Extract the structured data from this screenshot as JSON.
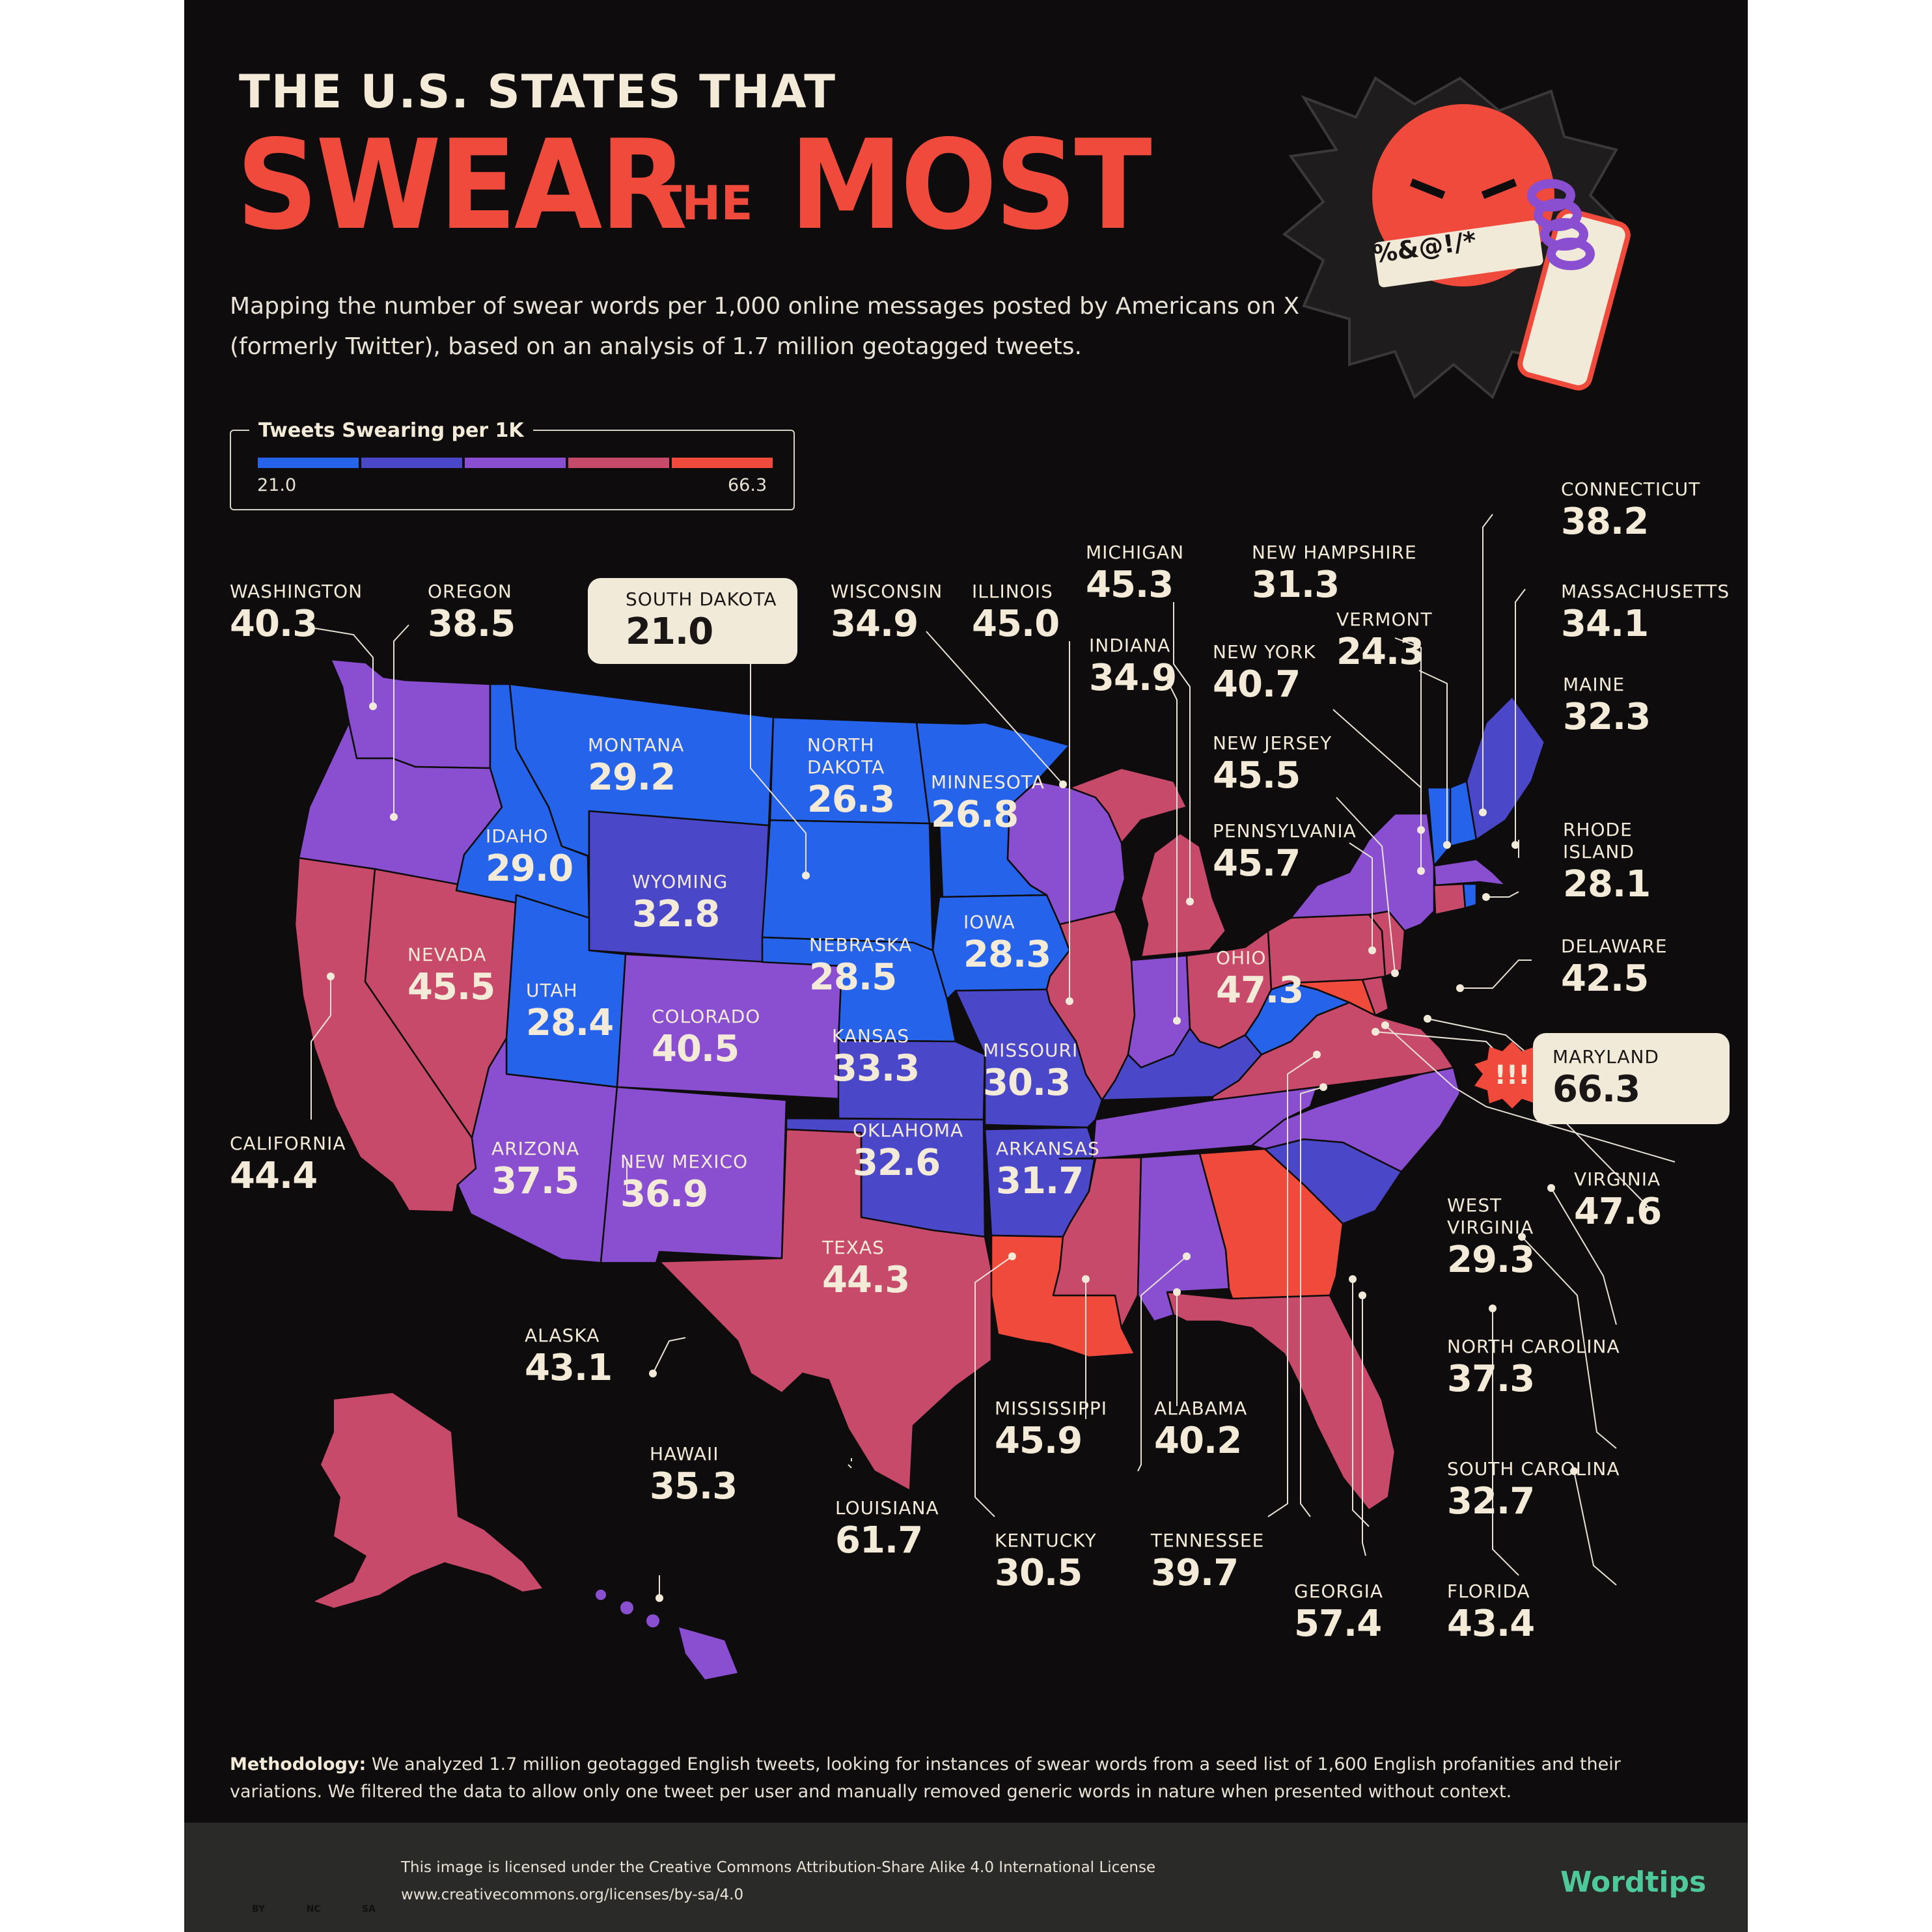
{
  "header": {
    "title_top": "THE U.S. STATES THAT",
    "title_swear": "SWEAR",
    "title_the": "THE",
    "title_most": "MOST",
    "subtitle": "Mapping the number of swear words per 1,000 online messages posted by Americans on X (formerly Twitter), based on an analysis of 1.7 million geotagged tweets."
  },
  "illustration": {
    "symbols": "%&@!/*"
  },
  "legend": {
    "title": "Tweets Swearing per 1K",
    "min": "21.0",
    "max": "66.3",
    "colors": [
      "#2563eb",
      "#4a47c9",
      "#8a4fd0",
      "#c84a6a",
      "#ef4a3c"
    ]
  },
  "states": {
    "washington": {
      "name": "WASHINGTON",
      "value": "40.3"
    },
    "oregon": {
      "name": "OREGON",
      "value": "38.5"
    },
    "south_dakota": {
      "name": "SOUTH DAKOTA",
      "value": "21.0"
    },
    "wisconsin": {
      "name": "WISCONSIN",
      "value": "34.9"
    },
    "illinois": {
      "name": "ILLINOIS",
      "value": "45.0"
    },
    "michigan": {
      "name": "MICHIGAN",
      "value": "45.3"
    },
    "indiana": {
      "name": "INDIANA",
      "value": "34.9"
    },
    "new_hampshire": {
      "name": "NEW HAMPSHIRE",
      "value": "31.3"
    },
    "vermont": {
      "name": "VERMONT",
      "value": "24.3"
    },
    "new_york": {
      "name": "NEW YORK",
      "value": "40.7"
    },
    "new_jersey": {
      "name": "NEW JERSEY",
      "value": "45.5"
    },
    "pennsylvania": {
      "name": "PENNSYLVANIA",
      "value": "45.7"
    },
    "connecticut": {
      "name": "CONNECTICUT",
      "value": "38.2"
    },
    "massachusetts": {
      "name": "MASSACHUSETTS",
      "value": "34.1"
    },
    "maine": {
      "name": "MAINE",
      "value": "32.3"
    },
    "rhode_island": {
      "name1": "RHODE",
      "name2": "ISLAND",
      "value": "28.1"
    },
    "delaware": {
      "name": "DELAWARE",
      "value": "42.5"
    },
    "maryland": {
      "name": "MARYLAND",
      "value": "66.3"
    },
    "virginia": {
      "name": "VIRGINIA",
      "value": "47.6"
    },
    "west_virginia": {
      "name1": "WEST",
      "name2": "VIRGINIA",
      "value": "29.3"
    },
    "north_carolina": {
      "name": "NORTH CAROLINA",
      "value": "37.3"
    },
    "south_carolina": {
      "name": "SOUTH CAROLINA",
      "value": "32.7"
    },
    "florida": {
      "name": "FLORIDA",
      "value": "43.4"
    },
    "georgia": {
      "name": "GEORGIA",
      "value": "57.4"
    },
    "tennessee": {
      "name": "TENNESSEE",
      "value": "39.7"
    },
    "kentucky": {
      "name": "KENTUCKY",
      "value": "30.5"
    },
    "louisiana": {
      "name": "LOUISIANA",
      "value": "61.7"
    },
    "mississippi": {
      "name": "MISSISSIPPI",
      "value": "45.9"
    },
    "alabama": {
      "name": "ALABAMA",
      "value": "40.2"
    },
    "california": {
      "name": "CALIFORNIA",
      "value": "44.4"
    },
    "alaska": {
      "name": "ALASKA",
      "value": "43.1"
    },
    "hawaii": {
      "name": "HAWAII",
      "value": "35.3"
    },
    "montana": {
      "name": "MONTANA",
      "value": "29.2"
    },
    "north_dakota": {
      "name1": "NORTH",
      "name2": "DAKOTA",
      "value": "26.3"
    },
    "minnesota": {
      "name": "MINNESOTA",
      "value": "26.8"
    },
    "idaho": {
      "name": "IDAHO",
      "value": "29.0"
    },
    "wyoming": {
      "name": "WYOMING",
      "value": "32.8"
    },
    "nevada": {
      "name": "NEVADA",
      "value": "45.5"
    },
    "utah": {
      "name": "UTAH",
      "value": "28.4"
    },
    "colorado": {
      "name": "COLORADO",
      "value": "40.5"
    },
    "nebraska": {
      "name": "NEBRASKA",
      "value": "28.5"
    },
    "iowa": {
      "name": "IOWA",
      "value": "28.3"
    },
    "kansas": {
      "name": "KANSAS",
      "value": "33.3"
    },
    "missouri": {
      "name": "MISSOURI",
      "value": "30.3"
    },
    "ohio": {
      "name": "OHIO",
      "value": "47.3"
    },
    "arizona": {
      "name": "ARIZONA",
      "value": "37.5"
    },
    "new_mexico": {
      "name": "NEW MEXICO",
      "value": "36.9"
    },
    "oklahoma": {
      "name": "OKLAHOMA",
      "value": "32.6"
    },
    "arkansas": {
      "name": "ARKANSAS",
      "value": "31.7"
    },
    "texas": {
      "name": "TEXAS",
      "value": "44.3"
    }
  },
  "methodology": {
    "label": "Methodology:",
    "text": " We analyzed 1.7 million geotagged English tweets, looking for instances of swear words from a seed list of 1,600 English profanities and their variations. We filtered the data to allow only one tweet per user and manually removed generic words in nature when presented without context."
  },
  "footer": {
    "cc_badges": [
      "BY",
      "NC",
      "SA"
    ],
    "license_line1": "This image is licensed under the Creative Commons Attribution-Share Alike 4.0 International License",
    "license_line2": "www.creativecommons.org/licenses/by-sa/4.0",
    "brand": "Wordtips"
  }
}
